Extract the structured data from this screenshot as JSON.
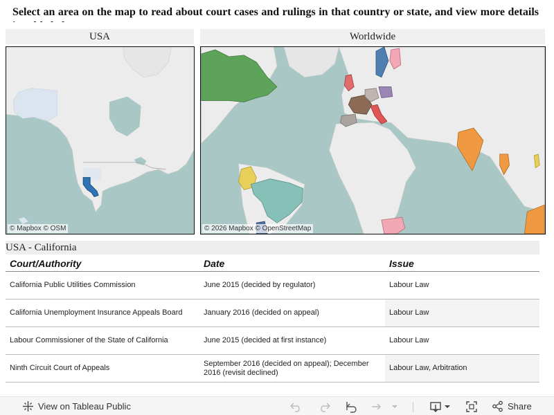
{
  "instruction": "Select an area on the map to read about court cases and rulings in that country or state, and view more details in table below.",
  "maps": {
    "usa": {
      "title": "USA",
      "attribution": "© Mapbox  © OSM"
    },
    "world": {
      "title": "Worldwide",
      "attribution": "© 2026 Mapbox  © OpenStreetMap"
    }
  },
  "selection": "USA - California",
  "table": {
    "columns": [
      "Court/Authority",
      "Date",
      "Issue"
    ],
    "rows": [
      {
        "court": "California Public Utilities Commission",
        "date": "June 2015 (decided by regulator)",
        "issue": "Labour Law"
      },
      {
        "court": "California Unemployment Insurance Appeals Board",
        "date": "January 2016 (decided on appeal)",
        "issue": "Labour Law"
      },
      {
        "court": "Labour Commissioner of the State of California",
        "date": "June 2015 (decided at first instance)",
        "issue": "Labour Law"
      },
      {
        "court": "Ninth Circuit Court of Appeals",
        "date": "September 2016 (decided on appeal); December 2016 (revisit declined)",
        "issue": "Labour Law, Arbitration"
      }
    ]
  },
  "toolbar": {
    "view_label": "View on Tableau Public",
    "share_label": "Share"
  },
  "colors": {
    "water": "#a9c7c5",
    "land": "#ececec",
    "california": "#2f74b5",
    "canada_world": "#5ea35a",
    "brazil": "#86c1b8",
    "colombia": "#e8cf5a",
    "india": "#ef9a43"
  }
}
